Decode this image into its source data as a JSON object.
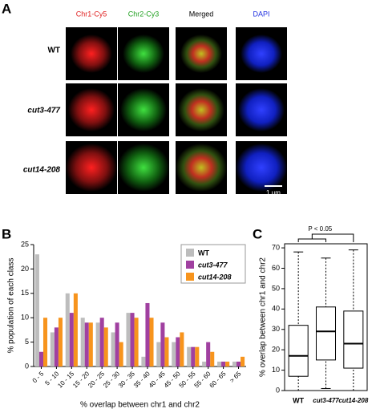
{
  "figure": {
    "panel_labels": [
      "A",
      "B",
      "C"
    ],
    "columns": [
      {
        "label": "Chr1-Cy5",
        "color": "#e02020"
      },
      {
        "label": "Chr2-Cy3",
        "color": "#20a020"
      },
      {
        "label": "Merged",
        "color": "#000000"
      },
      {
        "label": "DAPI",
        "color": "#2030e0"
      }
    ],
    "rows": [
      "WT",
      "cut3-477",
      "cut14-208"
    ],
    "scale_bar": "1 µm"
  },
  "chart_data": [
    {
      "type": "bar",
      "x_label": "% overlap between chr1 and chr2",
      "y_label": "% population of each class",
      "categories": [
        "0 - 5",
        "5 - 10",
        "10 - 15",
        "15 - 20",
        "20 - 25",
        "25 - 30",
        "30 - 35",
        "35 - 40",
        "40 - 45",
        "45 - 50",
        "50 - 55",
        "55 - 60",
        "60 - 65",
        "> 65"
      ],
      "series": [
        {
          "name": "WT",
          "color": "#bdbdbd",
          "values": [
            23,
            7,
            15,
            10,
            9,
            7,
            11,
            2,
            5,
            5,
            4,
            1,
            1,
            1
          ]
        },
        {
          "name": "cut3-477",
          "color": "#a040a0",
          "values": [
            3,
            8,
            11,
            9,
            10,
            9,
            11,
            13,
            9,
            6,
            4,
            5,
            1,
            1
          ]
        },
        {
          "name": "cut14-208",
          "color": "#f7941d",
          "values": [
            10,
            10,
            15,
            9,
            8,
            5,
            10,
            10,
            6,
            7,
            4,
            3,
            1,
            2
          ]
        }
      ],
      "ylim": [
        0,
        25
      ],
      "yticks": [
        0,
        5,
        10,
        15,
        20,
        25
      ],
      "legend": "upper right"
    },
    {
      "type": "box",
      "y_label": "% overlap between chr1 and chr2",
      "annotation": "P < 0.05",
      "categories": [
        "WT",
        "cut3-477",
        "cut14-208"
      ],
      "min": [
        0,
        1,
        0
      ],
      "q1": [
        7,
        15,
        11
      ],
      "median": [
        17,
        29,
        23
      ],
      "q3": [
        32,
        41,
        39
      ],
      "max": [
        68,
        65,
        69
      ],
      "ylim": [
        0,
        72
      ],
      "yticks": [
        0,
        10,
        20,
        30,
        40,
        50,
        60,
        70
      ]
    }
  ]
}
